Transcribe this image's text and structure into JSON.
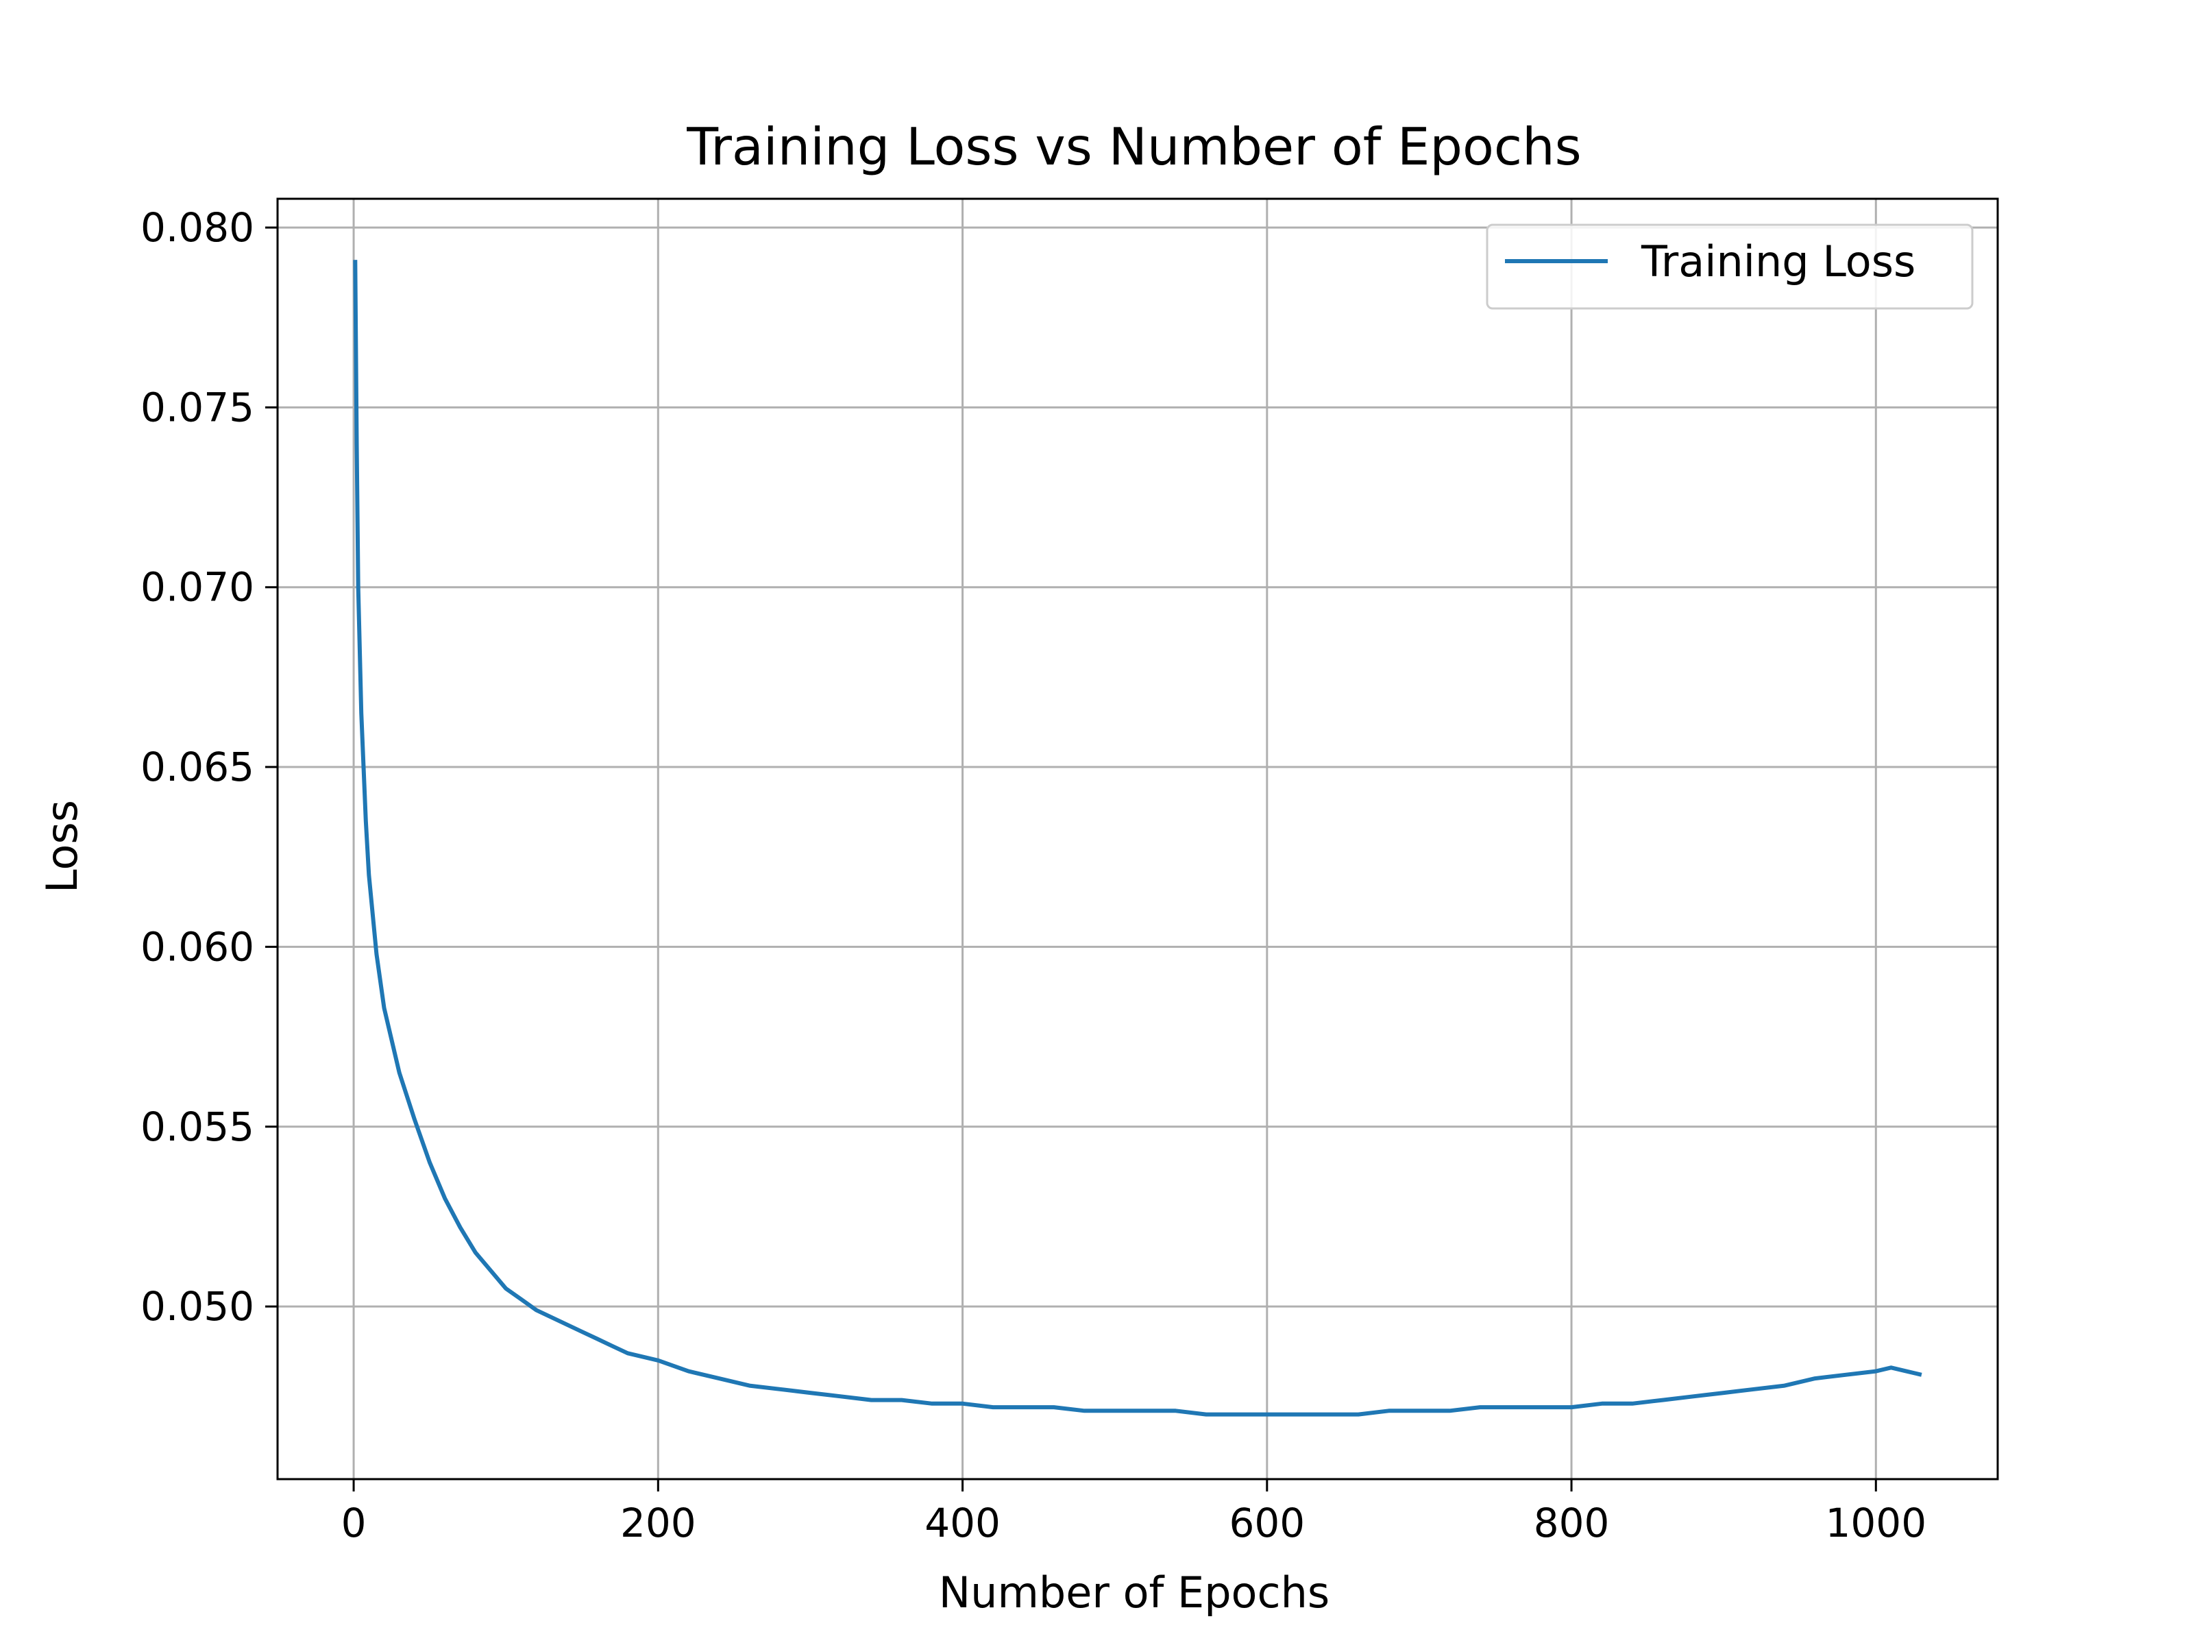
{
  "chart_data": {
    "type": "line",
    "title": "Training Loss vs Number of Epochs",
    "xlabel": "Number of Epochs",
    "ylabel": "Loss",
    "xlim": [
      -50,
      1080
    ],
    "ylim": [
      0.0452,
      0.0808
    ],
    "xticks": [
      0,
      200,
      400,
      600,
      800,
      1000
    ],
    "yticks": [
      0.05,
      0.055,
      0.06,
      0.065,
      0.07,
      0.075,
      0.08
    ],
    "xtick_labels": [
      "0",
      "200",
      "400",
      "600",
      "800",
      "1000"
    ],
    "ytick_labels": [
      "0.050",
      "0.055",
      "0.060",
      "0.065",
      "0.070",
      "0.075",
      "0.080"
    ],
    "grid": true,
    "legend": {
      "position": "top-right"
    },
    "series": [
      {
        "name": "Training Loss",
        "color": "#1f77b4",
        "x": [
          1,
          2,
          3,
          5,
          8,
          10,
          15,
          20,
          30,
          40,
          50,
          60,
          70,
          80,
          90,
          100,
          110,
          120,
          130,
          140,
          150,
          160,
          170,
          180,
          190,
          200,
          220,
          240,
          260,
          280,
          300,
          320,
          340,
          360,
          380,
          400,
          420,
          440,
          460,
          480,
          500,
          520,
          540,
          560,
          580,
          600,
          620,
          640,
          660,
          680,
          700,
          720,
          740,
          760,
          780,
          800,
          820,
          840,
          860,
          880,
          900,
          920,
          940,
          960,
          980,
          1000,
          1010,
          1020,
          1030
        ],
        "y": [
          0.0791,
          0.074,
          0.07,
          0.0665,
          0.0635,
          0.062,
          0.0598,
          0.0583,
          0.0565,
          0.0552,
          0.054,
          0.053,
          0.0522,
          0.0515,
          0.051,
          0.0505,
          0.0502,
          0.0499,
          0.0497,
          0.0495,
          0.0493,
          0.0491,
          0.0489,
          0.0487,
          0.0486,
          0.0485,
          0.0482,
          0.048,
          0.0478,
          0.0477,
          0.0476,
          0.0475,
          0.0474,
          0.0474,
          0.0473,
          0.0473,
          0.0472,
          0.0472,
          0.0472,
          0.0471,
          0.0471,
          0.0471,
          0.0471,
          0.047,
          0.047,
          0.047,
          0.047,
          0.047,
          0.047,
          0.0471,
          0.0471,
          0.0471,
          0.0472,
          0.0472,
          0.0472,
          0.0472,
          0.0473,
          0.0473,
          0.0474,
          0.0475,
          0.0476,
          0.0477,
          0.0478,
          0.048,
          0.0481,
          0.0482,
          0.0483,
          0.0482,
          0.0481
        ]
      }
    ]
  }
}
